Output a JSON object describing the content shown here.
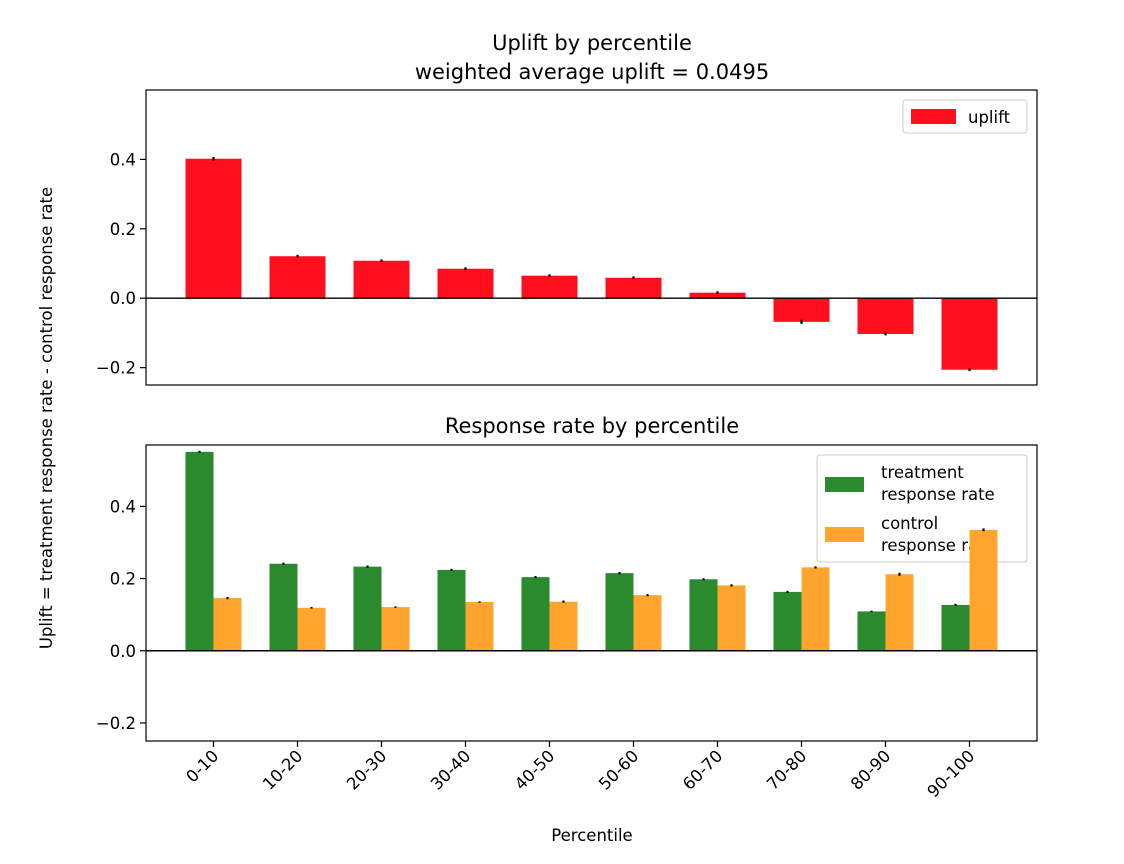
{
  "chart_data": [
    {
      "type": "bar",
      "title": "Uplift by percentile",
      "subtitle": "weighted average uplift = 0.0495",
      "ylabel": "Uplift = treatment response rate - control response rate",
      "ylim": [
        -0.25,
        0.6
      ],
      "yticks": [
        "0.4",
        "0.2",
        "0.0",
        "−0.2"
      ],
      "legend_position": "top-right",
      "categories": [
        "0-10",
        "10-20",
        "20-30",
        "30-40",
        "40-50",
        "50-60",
        "60-70",
        "70-80",
        "80-90",
        "90-100"
      ],
      "series": [
        {
          "name": "uplift",
          "color": "#ff0e1e",
          "values": [
            0.402,
            0.121,
            0.108,
            0.085,
            0.065,
            0.059,
            0.016,
            -0.068,
            -0.103,
            -0.206
          ],
          "errors": [
            0.005,
            0.004,
            0.004,
            0.004,
            0.004,
            0.004,
            0.004,
            0.006,
            0.004,
            0.004
          ]
        }
      ]
    },
    {
      "type": "bar",
      "title": "Response rate by percentile",
      "xlabel": "Percentile",
      "ylim": [
        -0.25,
        0.57
      ],
      "yticks": [
        "0.4",
        "0.2",
        "0.0",
        "−0.2"
      ],
      "legend_position": "top-right",
      "categories": [
        "0-10",
        "10-20",
        "20-30",
        "30-40",
        "40-50",
        "50-60",
        "60-70",
        "70-80",
        "80-90",
        "90-100"
      ],
      "series": [
        {
          "name": "treatment\nresponse rate",
          "legend_lines": [
            "treatment",
            "response rate"
          ],
          "color": "#2a8a2e",
          "values": [
            0.551,
            0.241,
            0.233,
            0.224,
            0.204,
            0.215,
            0.198,
            0.163,
            0.109,
            0.127
          ],
          "errors": [
            0.003,
            0.003,
            0.003,
            0.003,
            0.003,
            0.003,
            0.003,
            0.003,
            0.002,
            0.003
          ]
        },
        {
          "name": "control\nresponse rate",
          "legend_lines": [
            "control",
            "response rate"
          ],
          "color": "#ffa52d",
          "values": [
            0.146,
            0.119,
            0.121,
            0.135,
            0.136,
            0.154,
            0.181,
            0.231,
            0.212,
            0.335
          ],
          "errors": [
            0.003,
            0.002,
            0.002,
            0.002,
            0.003,
            0.003,
            0.003,
            0.003,
            0.004,
            0.004
          ]
        }
      ]
    }
  ]
}
